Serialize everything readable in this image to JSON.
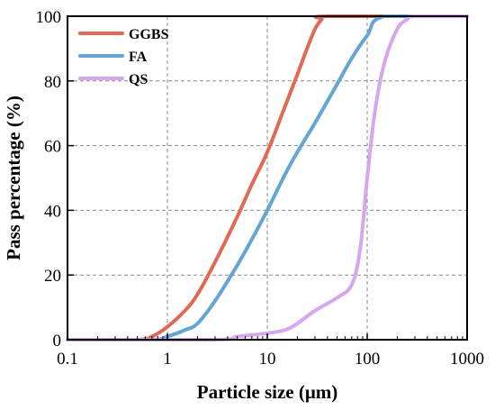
{
  "chart_data": {
    "type": "line",
    "xlabel": "Particle size (μm)",
    "ylabel": "Pass percentage (%)",
    "x_scale": "log",
    "xlim": [
      0.1,
      1000
    ],
    "ylim": [
      0,
      100
    ],
    "x_ticks": [
      "0.1",
      "1",
      "10",
      "100",
      "1000"
    ],
    "y_ticks": [
      "0",
      "20",
      "40",
      "60",
      "80",
      "100"
    ],
    "grid": true,
    "legend_position": "top-left",
    "series": [
      {
        "name": "GGBS",
        "color": "#e06a55",
        "points": [
          [
            0.1,
            0
          ],
          [
            0.5,
            0
          ],
          [
            0.7,
            1
          ],
          [
            1,
            4
          ],
          [
            1.5,
            9
          ],
          [
            2,
            14
          ],
          [
            3,
            24
          ],
          [
            5,
            38
          ],
          [
            7,
            48
          ],
          [
            10,
            58
          ],
          [
            15,
            72
          ],
          [
            20,
            82
          ],
          [
            25,
            90
          ],
          [
            30,
            96
          ],
          [
            35,
            99
          ],
          [
            40,
            100
          ],
          [
            1000,
            100
          ]
        ]
      },
      {
        "name": "FA",
        "color": "#64a5d4",
        "points": [
          [
            0.1,
            0
          ],
          [
            0.7,
            0
          ],
          [
            1,
            1
          ],
          [
            1.5,
            3
          ],
          [
            2,
            5
          ],
          [
            3,
            12
          ],
          [
            5,
            23
          ],
          [
            7,
            31
          ],
          [
            10,
            40
          ],
          [
            15,
            51
          ],
          [
            20,
            58
          ],
          [
            30,
            67
          ],
          [
            50,
            79
          ],
          [
            70,
            87
          ],
          [
            100,
            94
          ],
          [
            150,
            100
          ],
          [
            1000,
            100
          ]
        ]
      },
      {
        "name": "QS",
        "color": "#d6a6ef",
        "points": [
          [
            0.1,
            0
          ],
          [
            3,
            0
          ],
          [
            5,
            1
          ],
          [
            10,
            2
          ],
          [
            15,
            3
          ],
          [
            20,
            5
          ],
          [
            30,
            9
          ],
          [
            50,
            13
          ],
          [
            70,
            17
          ],
          [
            85,
            28
          ],
          [
            100,
            50
          ],
          [
            120,
            71
          ],
          [
            150,
            86
          ],
          [
            200,
            96
          ],
          [
            250,
            99
          ],
          [
            300,
            100
          ],
          [
            1000,
            100
          ]
        ]
      }
    ]
  }
}
